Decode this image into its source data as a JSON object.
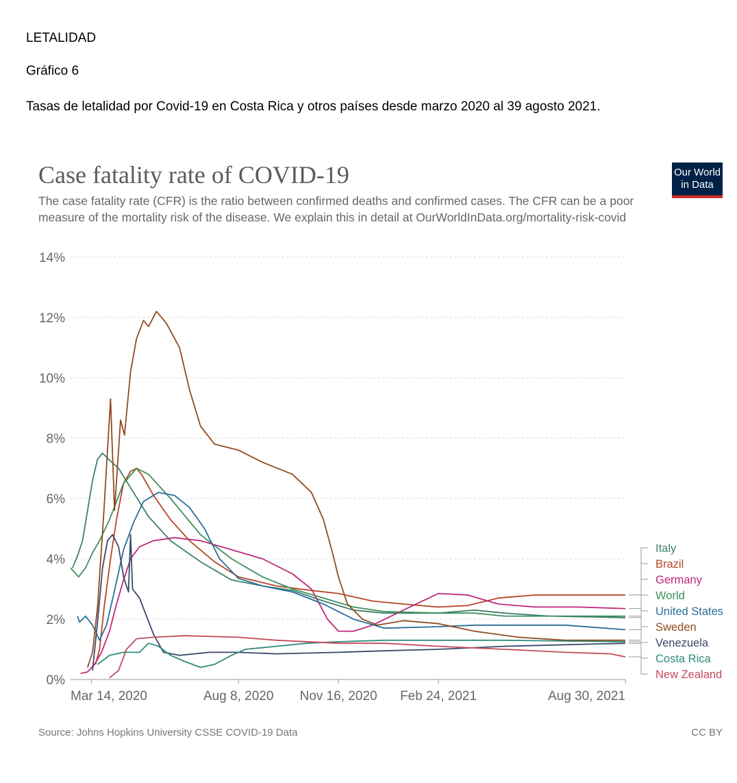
{
  "document": {
    "heading": "LETALIDAD",
    "figure_number": "Gráfico 6",
    "caption": "Tasas de letalidad por Covid-19 en Costa Rica y otros países desde marzo 2020 al 39 agosto 2021."
  },
  "logo": {
    "line1": "Our World",
    "line2": "in Data",
    "bg_color": "#002147",
    "accent_color": "#d42b21"
  },
  "footer": {
    "source": "Source: Johns Hopkins University CSSE COVID-19 Data",
    "license": "CC BY"
  },
  "chart_data": {
    "type": "line",
    "title": "Case fatality rate of COVID-19",
    "subtitle": "The case fatality rate (CFR) is the ratio between confirmed deaths and confirmed cases. The CFR can be a poor measure of the mortality risk of the disease. We explain this in detail at OurWorldInData.org/mortality-risk-covid",
    "x_range": [
      "2020-02-22",
      "2021-08-30"
    ],
    "x_ticks": [
      {
        "date": "2020-03-14",
        "label": "Mar 14, 2020"
      },
      {
        "date": "2020-08-08",
        "label": "Aug 8, 2020"
      },
      {
        "date": "2020-11-16",
        "label": "Nov 16, 2020"
      },
      {
        "date": "2021-02-24",
        "label": "Feb 24, 2021"
      },
      {
        "date": "2021-08-30",
        "label": "Aug 30, 2021"
      }
    ],
    "y_range": [
      0,
      14
    ],
    "y_unit": "%",
    "y_ticks": [
      0,
      2,
      4,
      6,
      8,
      10,
      12,
      14
    ],
    "grid": true,
    "legend_position": "right",
    "series": [
      {
        "name": "Italy",
        "color": "#3c7f6a",
        "points": [
          [
            "2020-02-24",
            3.7
          ],
          [
            "2020-02-29",
            4.1
          ],
          [
            "2020-03-05",
            4.6
          ],
          [
            "2020-03-10",
            5.6
          ],
          [
            "2020-03-15",
            6.6
          ],
          [
            "2020-03-20",
            7.3
          ],
          [
            "2020-03-25",
            7.5
          ],
          [
            "2020-03-31",
            7.3
          ],
          [
            "2020-04-10",
            7.0
          ],
          [
            "2020-04-25",
            6.2
          ],
          [
            "2020-05-10",
            5.4
          ],
          [
            "2020-06-01",
            4.6
          ],
          [
            "2020-07-01",
            3.9
          ],
          [
            "2020-08-01",
            3.3
          ],
          [
            "2020-09-01",
            3.1
          ],
          [
            "2020-10-01",
            2.95
          ],
          [
            "2020-11-01",
            2.6
          ],
          [
            "2020-12-01",
            2.3
          ],
          [
            "2021-01-01",
            2.2
          ],
          [
            "2021-02-24",
            2.2
          ],
          [
            "2021-04-01",
            2.3
          ],
          [
            "2021-05-01",
            2.2
          ],
          [
            "2021-06-15",
            2.1
          ],
          [
            "2021-08-30",
            2.05
          ]
        ]
      },
      {
        "name": "Brazil",
        "color": "#b54624",
        "points": [
          [
            "2020-03-18",
            0.5
          ],
          [
            "2020-03-22",
            1.0
          ],
          [
            "2020-03-27",
            2.5
          ],
          [
            "2020-04-02",
            4.0
          ],
          [
            "2020-04-08",
            5.3
          ],
          [
            "2020-04-15",
            6.5
          ],
          [
            "2020-04-22",
            6.9
          ],
          [
            "2020-04-28",
            7.0
          ],
          [
            "2020-05-03",
            6.8
          ],
          [
            "2020-05-15",
            6.1
          ],
          [
            "2020-06-01",
            5.3
          ],
          [
            "2020-06-20",
            4.6
          ],
          [
            "2020-07-15",
            3.9
          ],
          [
            "2020-08-08",
            3.4
          ],
          [
            "2020-09-15",
            3.1
          ],
          [
            "2020-10-20",
            2.95
          ],
          [
            "2020-11-16",
            2.85
          ],
          [
            "2020-12-20",
            2.6
          ],
          [
            "2021-01-20",
            2.5
          ],
          [
            "2021-02-24",
            2.4
          ],
          [
            "2021-03-25",
            2.45
          ],
          [
            "2021-04-25",
            2.7
          ],
          [
            "2021-06-01",
            2.8
          ],
          [
            "2021-08-30",
            2.8
          ]
        ]
      },
      {
        "name": "Germany",
        "color": "#c0267a",
        "points": [
          [
            "2020-03-03",
            0.2
          ],
          [
            "2020-03-10",
            0.25
          ],
          [
            "2020-03-17",
            0.5
          ],
          [
            "2020-03-24",
            0.9
          ],
          [
            "2020-04-01",
            1.6
          ],
          [
            "2020-04-08",
            2.5
          ],
          [
            "2020-04-15",
            3.3
          ],
          [
            "2020-04-22",
            4.0
          ],
          [
            "2020-05-01",
            4.4
          ],
          [
            "2020-05-15",
            4.6
          ],
          [
            "2020-06-05",
            4.7
          ],
          [
            "2020-07-01",
            4.6
          ],
          [
            "2020-08-01",
            4.3
          ],
          [
            "2020-09-01",
            4.0
          ],
          [
            "2020-10-01",
            3.5
          ],
          [
            "2020-10-20",
            3.0
          ],
          [
            "2020-11-05",
            2.0
          ],
          [
            "2020-11-16",
            1.6
          ],
          [
            "2020-12-01",
            1.6
          ],
          [
            "2020-12-20",
            1.8
          ],
          [
            "2021-01-20",
            2.3
          ],
          [
            "2021-02-24",
            2.85
          ],
          [
            "2021-03-25",
            2.8
          ],
          [
            "2021-04-25",
            2.5
          ],
          [
            "2021-06-01",
            2.4
          ],
          [
            "2021-07-15",
            2.4
          ],
          [
            "2021-08-30",
            2.35
          ]
        ]
      },
      {
        "name": "World",
        "color": "#3c8f5a",
        "points": [
          [
            "2020-02-22",
            3.7
          ],
          [
            "2020-03-01",
            3.4
          ],
          [
            "2020-03-08",
            3.7
          ],
          [
            "2020-03-15",
            4.2
          ],
          [
            "2020-03-22",
            4.6
          ],
          [
            "2020-04-01",
            5.3
          ],
          [
            "2020-04-15",
            6.5
          ],
          [
            "2020-04-28",
            7.0
          ],
          [
            "2020-05-10",
            6.8
          ],
          [
            "2020-06-01",
            6.0
          ],
          [
            "2020-07-01",
            4.8
          ],
          [
            "2020-08-01",
            4.0
          ],
          [
            "2020-09-01",
            3.4
          ],
          [
            "2020-10-01",
            3.0
          ],
          [
            "2020-11-01",
            2.7
          ],
          [
            "2020-12-01",
            2.4
          ],
          [
            "2021-01-01",
            2.25
          ],
          [
            "2021-02-24",
            2.2
          ],
          [
            "2021-04-01",
            2.2
          ],
          [
            "2021-05-01",
            2.1
          ],
          [
            "2021-06-15",
            2.1
          ],
          [
            "2021-08-30",
            2.1
          ]
        ]
      },
      {
        "name": "United States",
        "color": "#2a6d9b",
        "points": [
          [
            "2020-02-29",
            2.1
          ],
          [
            "2020-03-02",
            1.9
          ],
          [
            "2020-03-08",
            2.1
          ],
          [
            "2020-03-15",
            1.8
          ],
          [
            "2020-03-22",
            1.3
          ],
          [
            "2020-03-29",
            1.8
          ],
          [
            "2020-04-05",
            2.8
          ],
          [
            "2020-04-15",
            4.3
          ],
          [
            "2020-04-25",
            5.2
          ],
          [
            "2020-05-05",
            5.9
          ],
          [
            "2020-05-20",
            6.2
          ],
          [
            "2020-06-05",
            6.1
          ],
          [
            "2020-06-20",
            5.7
          ],
          [
            "2020-07-05",
            5.0
          ],
          [
            "2020-07-20",
            4.0
          ],
          [
            "2020-08-08",
            3.35
          ],
          [
            "2020-09-01",
            3.1
          ],
          [
            "2020-10-01",
            2.9
          ],
          [
            "2020-11-01",
            2.5
          ],
          [
            "2020-12-01",
            2.0
          ],
          [
            "2021-01-01",
            1.7
          ],
          [
            "2021-02-24",
            1.75
          ],
          [
            "2021-04-01",
            1.8
          ],
          [
            "2021-05-15",
            1.8
          ],
          [
            "2021-07-01",
            1.8
          ],
          [
            "2021-08-30",
            1.65
          ]
        ]
      },
      {
        "name": "Sweden",
        "color": "#8f4b1e",
        "points": [
          [
            "2020-03-10",
            0.4
          ],
          [
            "2020-03-15",
            0.9
          ],
          [
            "2020-03-20",
            2.4
          ],
          [
            "2020-03-26",
            5.4
          ],
          [
            "2020-04-02",
            9.3
          ],
          [
            "2020-04-06",
            5.6
          ],
          [
            "2020-04-12",
            8.6
          ],
          [
            "2020-04-16",
            8.1
          ],
          [
            "2020-04-22",
            10.2
          ],
          [
            "2020-04-28",
            11.3
          ],
          [
            "2020-05-05",
            11.9
          ],
          [
            "2020-05-10",
            11.7
          ],
          [
            "2020-05-18",
            12.2
          ],
          [
            "2020-05-28",
            11.8
          ],
          [
            "2020-06-10",
            11.0
          ],
          [
            "2020-06-20",
            9.6
          ],
          [
            "2020-07-01",
            8.4
          ],
          [
            "2020-07-15",
            7.8
          ],
          [
            "2020-08-08",
            7.6
          ],
          [
            "2020-09-01",
            7.2
          ],
          [
            "2020-10-01",
            6.8
          ],
          [
            "2020-10-20",
            6.2
          ],
          [
            "2020-11-01",
            5.3
          ],
          [
            "2020-11-10",
            4.2
          ],
          [
            "2020-11-16",
            3.4
          ],
          [
            "2020-11-25",
            2.5
          ],
          [
            "2020-12-10",
            2.0
          ],
          [
            "2020-12-25",
            1.8
          ],
          [
            "2021-01-20",
            1.95
          ],
          [
            "2021-02-24",
            1.85
          ],
          [
            "2021-04-01",
            1.6
          ],
          [
            "2021-05-15",
            1.4
          ],
          [
            "2021-07-01",
            1.3
          ],
          [
            "2021-08-30",
            1.3
          ]
        ]
      },
      {
        "name": "Venezuela",
        "color": "#3a4768",
        "points": [
          [
            "2020-03-15",
            0.3
          ],
          [
            "2020-03-20",
            1.9
          ],
          [
            "2020-03-25",
            3.7
          ],
          [
            "2020-03-30",
            4.6
          ],
          [
            "2020-04-04",
            4.8
          ],
          [
            "2020-04-10",
            4.4
          ],
          [
            "2020-04-15",
            3.4
          ],
          [
            "2020-04-20",
            2.9
          ],
          [
            "2020-04-22",
            4.8
          ],
          [
            "2020-04-24",
            3.0
          ],
          [
            "2020-05-01",
            2.7
          ],
          [
            "2020-05-15",
            1.5
          ],
          [
            "2020-05-25",
            0.9
          ],
          [
            "2020-06-10",
            0.8
          ],
          [
            "2020-07-10",
            0.9
          ],
          [
            "2020-08-08",
            0.9
          ],
          [
            "2020-09-15",
            0.85
          ],
          [
            "2020-11-16",
            0.9
          ],
          [
            "2021-01-01",
            0.95
          ],
          [
            "2021-02-24",
            1.0
          ],
          [
            "2021-05-01",
            1.1
          ],
          [
            "2021-08-30",
            1.2
          ]
        ]
      },
      {
        "name": "Costa Rica",
        "color": "#2f8a7a",
        "points": [
          [
            "2020-03-20",
            0.5
          ],
          [
            "2020-04-01",
            0.8
          ],
          [
            "2020-04-15",
            0.9
          ],
          [
            "2020-05-01",
            0.9
          ],
          [
            "2020-05-10",
            1.2
          ],
          [
            "2020-05-20",
            1.1
          ],
          [
            "2020-06-01",
            0.8
          ],
          [
            "2020-06-15",
            0.6
          ],
          [
            "2020-07-01",
            0.4
          ],
          [
            "2020-07-15",
            0.5
          ],
          [
            "2020-08-01",
            0.8
          ],
          [
            "2020-08-15",
            1.0
          ],
          [
            "2020-09-15",
            1.1
          ],
          [
            "2020-10-15",
            1.2
          ],
          [
            "2020-11-16",
            1.25
          ],
          [
            "2021-01-01",
            1.3
          ],
          [
            "2021-02-24",
            1.3
          ],
          [
            "2021-05-01",
            1.3
          ],
          [
            "2021-08-30",
            1.25
          ]
        ]
      },
      {
        "name": "New Zealand",
        "color": "#c24b5a",
        "points": [
          [
            "2020-04-01",
            0.05
          ],
          [
            "2020-04-10",
            0.3
          ],
          [
            "2020-04-18",
            1.0
          ],
          [
            "2020-04-28",
            1.35
          ],
          [
            "2020-05-15",
            1.4
          ],
          [
            "2020-06-15",
            1.45
          ],
          [
            "2020-08-08",
            1.4
          ],
          [
            "2020-09-15",
            1.3
          ],
          [
            "2020-11-16",
            1.2
          ],
          [
            "2021-01-01",
            1.2
          ],
          [
            "2021-02-24",
            1.1
          ],
          [
            "2021-05-01",
            1.0
          ],
          [
            "2021-07-01",
            0.9
          ],
          [
            "2021-08-15",
            0.85
          ],
          [
            "2021-08-30",
            0.75
          ]
        ]
      }
    ]
  }
}
